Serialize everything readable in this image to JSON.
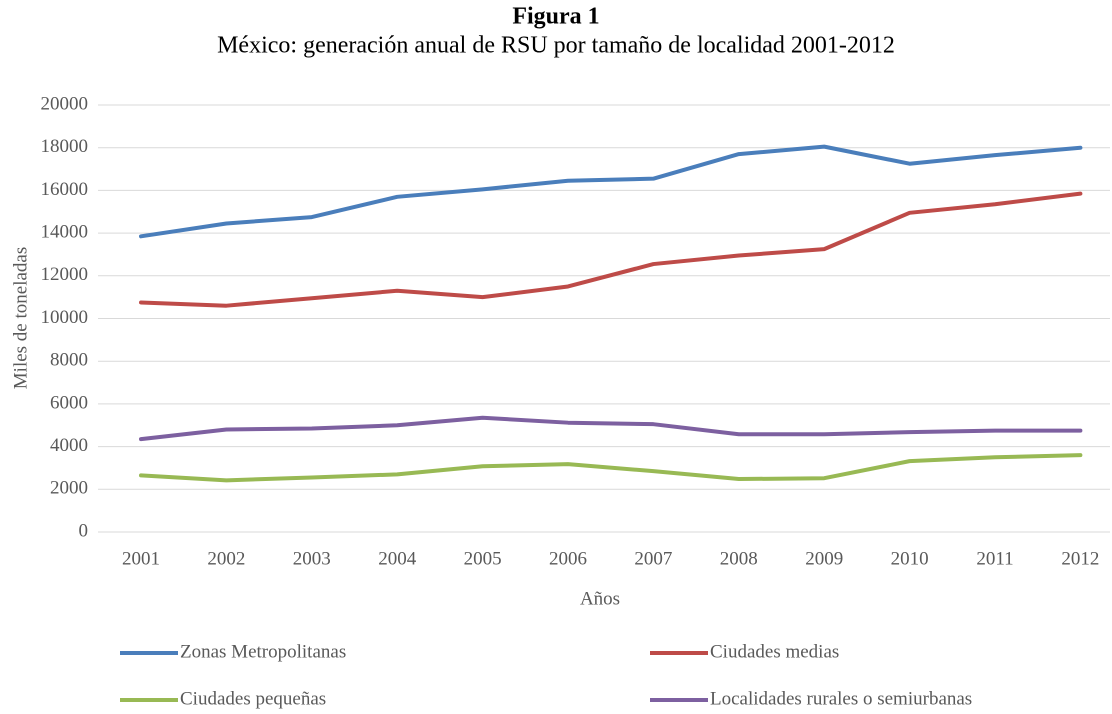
{
  "chart_data": {
    "type": "line",
    "title": "Figura 1",
    "subtitle": "México: generación anual de RSU por tamaño de localidad 2001-2012",
    "x_label": "Años",
    "y_label": "Miles de toneladas",
    "categories": [
      "2001",
      "2002",
      "2003",
      "2004",
      "2005",
      "2006",
      "2007",
      "2008",
      "2009",
      "2010",
      "2011",
      "2012"
    ],
    "series": [
      {
        "name": "Zonas Metropolitanas",
        "color": "#4a7ebb",
        "values": [
          13850,
          14450,
          14750,
          15700,
          16050,
          16450,
          16550,
          17700,
          18050,
          17250,
          17650,
          18000
        ]
      },
      {
        "name": "Ciudades medias",
        "color": "#be4b48",
        "values": [
          10750,
          10600,
          10950,
          11300,
          11000,
          11500,
          12550,
          12950,
          13250,
          14950,
          15350,
          15850
        ]
      },
      {
        "name": "Ciudades pequeñas",
        "color": "#98b954",
        "values": [
          2650,
          2420,
          2550,
          2700,
          3080,
          3180,
          2850,
          2480,
          2520,
          3320,
          3500,
          3600
        ]
      },
      {
        "name": "Localidades rurales o semiurbanas",
        "color": "#7d60a0",
        "values": [
          4350,
          4800,
          4850,
          5000,
          5350,
          5120,
          5050,
          4580,
          4580,
          4680,
          4750,
          4750
        ]
      }
    ],
    "ylim": [
      0,
      20000
    ],
    "yticks": [
      0,
      2000,
      4000,
      6000,
      8000,
      10000,
      12000,
      14000,
      16000,
      18000,
      20000
    ],
    "grid": true,
    "legend": "bottom"
  }
}
